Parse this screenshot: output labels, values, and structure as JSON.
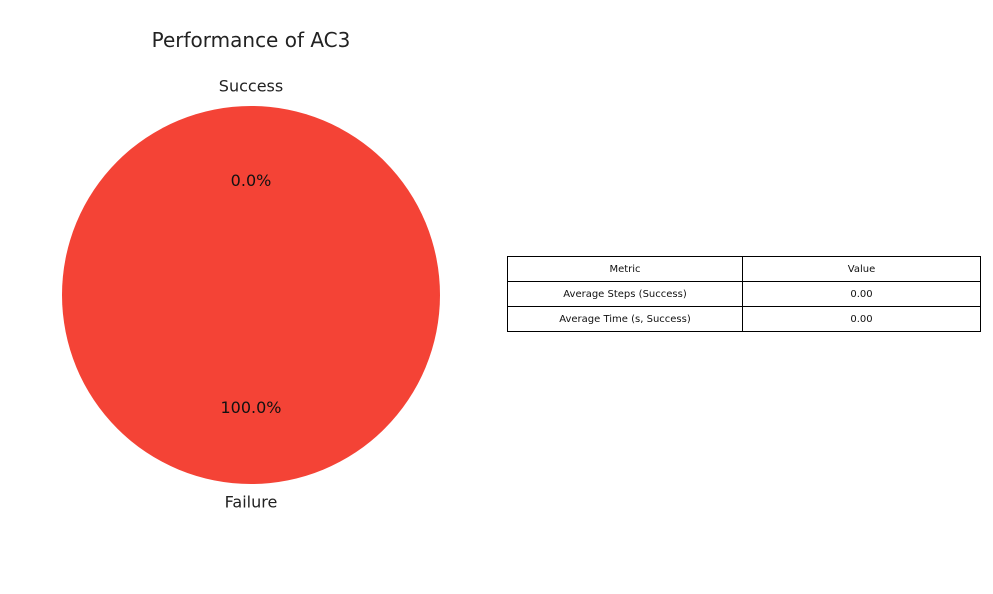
{
  "chart_data": [
    {
      "type": "pie",
      "title": "Performance of AC3",
      "categories": [
        "Success",
        "Failure"
      ],
      "values": [
        0.0,
        100.0
      ],
      "labels": [
        "0.0%",
        "100.0%"
      ],
      "colors": [
        "#4caf50",
        "#f44336"
      ],
      "start_angle_deg": 90,
      "direction": "counterclockwise"
    },
    {
      "type": "table",
      "columns": [
        "Metric",
        "Value"
      ],
      "rows": [
        [
          "Average Steps (Success)",
          "0.00"
        ],
        [
          "Average Time (s, Success)",
          "0.00"
        ]
      ]
    }
  ]
}
